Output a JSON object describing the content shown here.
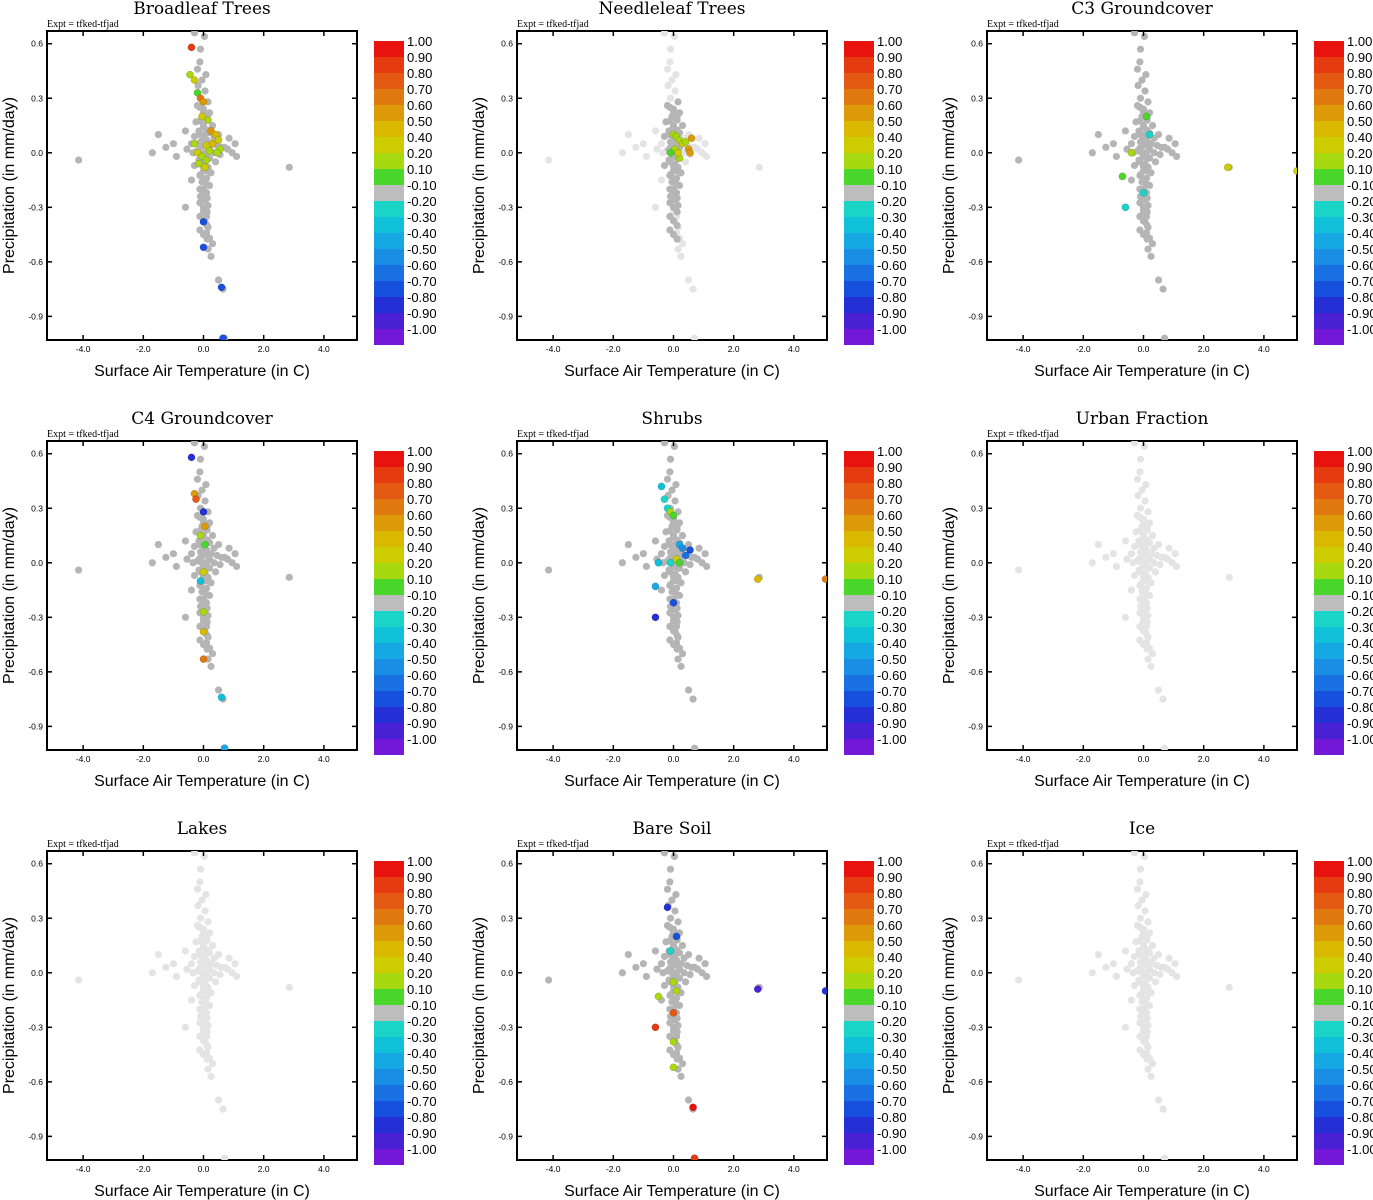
{
  "chart_data": {
    "type": "scatter",
    "layout": "3x3 grid",
    "expt_label": "Expt = tfked-tfjad",
    "xlabel": "Surface Air Temperature (in C)",
    "ylabel": "Precipitation (in mm/day)",
    "xlim": [
      -5.2,
      5.1
    ],
    "ylim": [
      -1.03,
      0.67
    ],
    "xticks": [
      "-4.0",
      "-2.0",
      "0.0",
      "2.0",
      "4.0"
    ],
    "xtick_values": [
      -4,
      -2,
      0,
      2,
      4
    ],
    "yticks": [
      "0.6",
      "0.3",
      "0.0",
      "-0.3",
      "-0.6",
      "-0.9"
    ],
    "ytick_values": [
      0.6,
      0.3,
      0,
      -0.3,
      -0.6,
      -0.9
    ],
    "colorbar": {
      "labels": [
        "1.00",
        "0.90",
        "0.80",
        "0.70",
        "0.60",
        "0.50",
        "0.40",
        "0.20",
        "0.10",
        "-0.10",
        "-0.20",
        "-0.30",
        "-0.40",
        "-0.50",
        "-0.60",
        "-0.70",
        "-0.80",
        "-0.90",
        "-1.00"
      ],
      "colors": [
        "#e8120e",
        "#e63a10",
        "#e45a12",
        "#e07a10",
        "#dc9a08",
        "#d8b800",
        "#cccc00",
        "#a8d810",
        "#4ad62a",
        "#bdbdbd",
        "#1ad4c8",
        "#10c0d8",
        "#16a8e2",
        "#1a8ee4",
        "#1870e2",
        "#1650dc",
        "#2430d6",
        "#4a20d4",
        "#7418d8"
      ]
    },
    "base_points": [
      [
        -0.3,
        0.66
      ],
      [
        0.03,
        0.64
      ],
      [
        -0.1,
        0.57
      ],
      [
        -0.12,
        0.5
      ],
      [
        -0.2,
        0.46
      ],
      [
        0.08,
        0.43
      ],
      [
        -0.05,
        0.4
      ],
      [
        -0.18,
        0.37
      ],
      [
        0.05,
        0.34
      ],
      [
        -0.1,
        0.3
      ],
      [
        0.15,
        0.28
      ],
      [
        -0.2,
        0.26
      ],
      [
        0.0,
        0.24
      ],
      [
        0.2,
        0.22
      ],
      [
        -0.05,
        0.2
      ],
      [
        0.12,
        0.18
      ],
      [
        -0.25,
        0.17
      ],
      [
        0.3,
        0.15
      ],
      [
        0.0,
        0.14
      ],
      [
        -0.15,
        0.12
      ],
      [
        0.2,
        0.11
      ],
      [
        0.05,
        0.1
      ],
      [
        -0.3,
        0.09
      ],
      [
        0.35,
        0.08
      ],
      [
        0.1,
        0.07
      ],
      [
        -0.1,
        0.06
      ],
      [
        0.25,
        0.05
      ],
      [
        -0.4,
        0.05
      ],
      [
        0.45,
        0.04
      ],
      [
        0.0,
        0.04
      ],
      [
        0.6,
        0.03
      ],
      [
        -0.55,
        0.02
      ],
      [
        0.2,
        0.02
      ],
      [
        -0.2,
        0.01
      ],
      [
        0.8,
        0.02
      ],
      [
        0.1,
        0.0
      ],
      [
        -0.05,
        0.0
      ],
      [
        0.35,
        0.0
      ],
      [
        -0.35,
        0.0
      ],
      [
        0.55,
        -0.01
      ],
      [
        0.0,
        -0.02
      ],
      [
        0.2,
        -0.03
      ],
      [
        -0.15,
        -0.04
      ],
      [
        0.4,
        -0.05
      ],
      [
        0.05,
        -0.06
      ],
      [
        -0.3,
        -0.07
      ],
      [
        0.15,
        -0.08
      ],
      [
        0.0,
        -0.1
      ],
      [
        0.25,
        -0.11
      ],
      [
        -0.1,
        -0.12
      ],
      [
        0.1,
        -0.14
      ],
      [
        -0.05,
        -0.16
      ],
      [
        0.2,
        -0.18
      ],
      [
        0.0,
        -0.2
      ],
      [
        0.1,
        -0.22
      ],
      [
        -0.1,
        -0.24
      ],
      [
        0.05,
        -0.26
      ],
      [
        0.15,
        -0.29
      ],
      [
        0.0,
        -0.32
      ],
      [
        0.1,
        -0.35
      ],
      [
        0.05,
        -0.38
      ],
      [
        0.15,
        -0.41
      ],
      [
        0.1,
        -0.44
      ],
      [
        0.2,
        -0.47
      ],
      [
        0.3,
        -0.5
      ],
      [
        0.15,
        -0.53
      ],
      [
        0.25,
        -0.57
      ],
      [
        -4.15,
        -0.04
      ],
      [
        -1.5,
        0.1
      ],
      [
        -1.7,
        0.0
      ],
      [
        -1.25,
        0.03
      ],
      [
        -0.9,
        -0.02
      ],
      [
        -1.0,
        0.05
      ],
      [
        1.05,
        0.05
      ],
      [
        0.95,
        0.0
      ],
      [
        1.1,
        -0.02
      ],
      [
        0.85,
        0.08
      ],
      [
        2.85,
        -0.08
      ],
      [
        -0.6,
        -0.3
      ],
      [
        -0.4,
        -0.15
      ],
      [
        0.5,
        -0.7
      ],
      [
        0.65,
        -0.75
      ],
      [
        0.7,
        -1.02
      ],
      [
        0.5,
        0.1
      ],
      [
        -0.6,
        0.12
      ],
      [
        0.7,
        0.03
      ]
    ],
    "panels": [
      {
        "title": "Broadleaf Trees",
        "base_color": "#b5b5b5",
        "colored_points": [
          [
            -0.4,
            0.58,
            0.9
          ],
          [
            -0.45,
            0.43,
            0.3
          ],
          [
            -0.3,
            0.4,
            0.35
          ],
          [
            -0.2,
            0.33,
            0.15
          ],
          [
            -0.1,
            0.3,
            0.65
          ],
          [
            0.0,
            0.28,
            0.6
          ],
          [
            -0.05,
            0.2,
            0.35
          ],
          [
            0.15,
            0.18,
            0.2
          ],
          [
            0.25,
            0.12,
            0.6
          ],
          [
            0.4,
            0.1,
            0.5
          ],
          [
            0.5,
            0.07,
            0.4
          ],
          [
            0.3,
            0.05,
            0.45
          ],
          [
            -0.3,
            0.05,
            0.25
          ],
          [
            0.1,
            0.04,
            0.35
          ],
          [
            0.55,
            0.02,
            0.25
          ],
          [
            0.2,
            0.01,
            0.3
          ],
          [
            -0.2,
            0.0,
            0.35
          ],
          [
            0.45,
            0.0,
            0.2
          ],
          [
            -0.05,
            -0.02,
            0.25
          ],
          [
            0.1,
            -0.04,
            0.3
          ],
          [
            -0.15,
            -0.06,
            0.2
          ],
          [
            0.05,
            -0.08,
            0.35
          ],
          [
            0.0,
            -0.38,
            -0.75
          ],
          [
            0.0,
            -0.52,
            -0.75
          ],
          [
            0.6,
            -0.74,
            -0.65
          ],
          [
            0.65,
            -1.02,
            -0.7
          ]
        ]
      },
      {
        "title": "Needleleaf Trees",
        "base_color": "#e4e4e4",
        "core_color": "#b5b5b5",
        "colored_points": [
          [
            0.0,
            0.1,
            0.2
          ],
          [
            0.1,
            0.09,
            0.3
          ],
          [
            0.2,
            0.07,
            0.25
          ],
          [
            0.3,
            0.05,
            0.35
          ],
          [
            0.4,
            0.06,
            0.2
          ],
          [
            0.5,
            0.02,
            0.55
          ],
          [
            0.6,
            0.08,
            0.55
          ],
          [
            0.55,
            0.0,
            0.6
          ],
          [
            0.05,
            0.02,
            0.2
          ],
          [
            0.2,
            -0.03,
            0.25
          ],
          [
            -0.1,
            0.0,
            0.15
          ],
          [
            0.15,
            0.0,
            0.35
          ]
        ]
      },
      {
        "title": "C3 Groundcover",
        "base_color": "#b5b5b5",
        "colored_points": [
          [
            0.1,
            0.2,
            0.15
          ],
          [
            0.2,
            0.1,
            -0.25
          ],
          [
            -0.4,
            0.0,
            0.3
          ],
          [
            -0.7,
            -0.13,
            0.15
          ],
          [
            -0.6,
            -0.3,
            -0.25
          ],
          [
            0.0,
            -0.22,
            -0.2
          ],
          [
            2.8,
            -0.08,
            0.35
          ],
          [
            5.1,
            -0.1,
            0.35
          ]
        ]
      },
      {
        "title": "C4 Groundcover",
        "base_color": "#b5b5b5",
        "colored_points": [
          [
            -0.4,
            0.58,
            -0.85
          ],
          [
            -0.3,
            0.38,
            0.6
          ],
          [
            -0.25,
            0.35,
            0.8
          ],
          [
            0.0,
            0.28,
            -0.8
          ],
          [
            0.05,
            0.2,
            0.55
          ],
          [
            -0.1,
            0.15,
            0.2
          ],
          [
            0.05,
            0.1,
            0.15
          ],
          [
            0.0,
            -0.05,
            0.35
          ],
          [
            -0.1,
            -0.1,
            -0.35
          ],
          [
            0.0,
            -0.27,
            0.2
          ],
          [
            0.0,
            -0.38,
            0.45
          ],
          [
            0.0,
            -0.53,
            0.7
          ],
          [
            0.6,
            -0.74,
            -0.35
          ],
          [
            0.7,
            -1.02,
            -0.4
          ]
        ]
      },
      {
        "title": "Shrubs",
        "base_color": "#b5b5b5",
        "colored_points": [
          [
            -0.4,
            0.42,
            -0.3
          ],
          [
            -0.3,
            0.35,
            -0.25
          ],
          [
            -0.2,
            0.3,
            -0.2
          ],
          [
            -0.1,
            0.28,
            0.2
          ],
          [
            0.0,
            0.26,
            0.15
          ],
          [
            0.2,
            0.1,
            -0.45
          ],
          [
            0.3,
            0.08,
            -0.5
          ],
          [
            0.55,
            0.07,
            -0.75
          ],
          [
            0.4,
            0.04,
            -0.55
          ],
          [
            0.1,
            0.02,
            0.4
          ],
          [
            -0.1,
            0.0,
            -0.2
          ],
          [
            -0.5,
            0.0,
            -0.3
          ],
          [
            -0.6,
            -0.13,
            -0.45
          ],
          [
            0.0,
            -0.22,
            -0.7
          ],
          [
            -0.6,
            -0.3,
            -0.85
          ],
          [
            0.2,
            0.0,
            0.15
          ],
          [
            2.8,
            -0.09,
            0.45
          ],
          [
            5.05,
            -0.09,
            0.65
          ]
        ]
      },
      {
        "title": "Urban Fraction",
        "base_color": "#e4e4e4",
        "colored_points": []
      },
      {
        "title": "Lakes",
        "base_color": "#e4e4e4",
        "colored_points": []
      },
      {
        "title": "Bare Soil",
        "base_color": "#b5b5b5",
        "colored_points": [
          [
            -0.2,
            0.36,
            -0.8
          ],
          [
            0.1,
            0.2,
            -0.7
          ],
          [
            -0.1,
            0.12,
            -0.2
          ],
          [
            0.0,
            -0.05,
            0.2
          ],
          [
            0.1,
            -0.1,
            0.3
          ],
          [
            -0.5,
            -0.13,
            0.3
          ],
          [
            0.0,
            -0.22,
            0.75
          ],
          [
            -0.6,
            -0.3,
            0.9
          ],
          [
            0.0,
            -0.38,
            0.2
          ],
          [
            0.0,
            -0.52,
            0.2
          ],
          [
            0.65,
            -0.74,
            1.0
          ],
          [
            0.7,
            -1.02,
            0.9
          ],
          [
            2.8,
            -0.09,
            -0.9
          ],
          [
            5.05,
            -0.1,
            -0.85
          ]
        ]
      },
      {
        "title": "Ice",
        "base_color": "#e4e4e4",
        "colored_points": []
      }
    ]
  }
}
